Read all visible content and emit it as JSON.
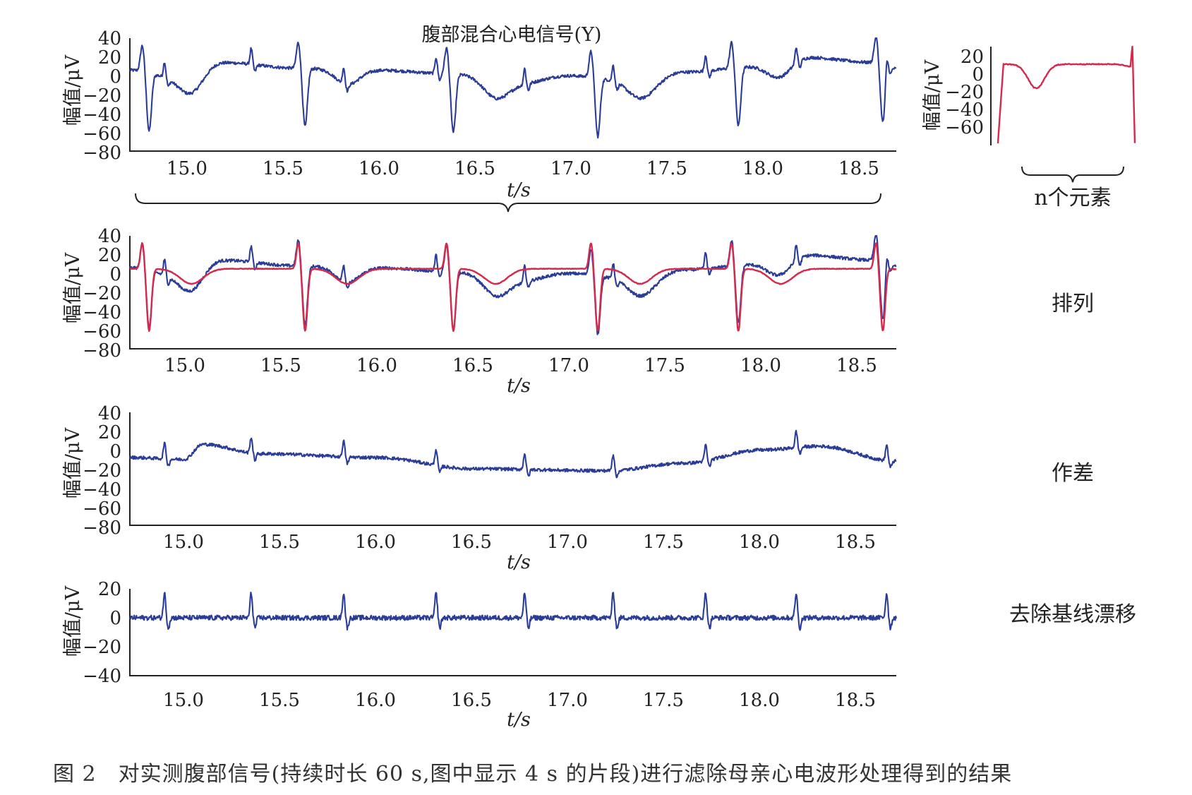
{
  "caption": "图 2　对实测腹部信号(持续时长 60 s,图中显示 4 s 的片段)进行滤除母亲心电波形处理得到的结果",
  "colors": {
    "blue": "#2b3c96",
    "red": "#d42a4e",
    "axis": "#222222"
  },
  "chart_data": [
    {
      "id": "p1",
      "type": "line",
      "title": "腹部混合心电信号(Y)",
      "xlabel": "t/s",
      "ylabel": "幅值/μV",
      "xlim": [
        14.72,
        18.7
      ],
      "ylim": [
        -80,
        40
      ],
      "xticks": [
        "15.0",
        "15.5",
        "16.0",
        "16.5",
        "17.0",
        "17.5",
        "18.0",
        "18.5"
      ],
      "yticks": [
        "40",
        "20",
        "0",
        "−20",
        "−40",
        "−60",
        "−80"
      ],
      "series": [
        {
          "color": "#2b3c96",
          "kind": "mixed",
          "maternal_peaks": [
            14.82,
            15.63,
            16.4,
            17.15,
            17.88,
            18.63
          ],
          "fetal_peaks": [
            14.9,
            15.35,
            15.83,
            16.31,
            16.77,
            17.23,
            17.71,
            18.18,
            18.65
          ],
          "maternal_depth": -62,
          "baseline": [
            [
              14.72,
              6
            ],
            [
              15.0,
              -4
            ],
            [
              15.2,
              14
            ],
            [
              15.6,
              8
            ],
            [
              16.0,
              6
            ],
            [
              16.4,
              2
            ],
            [
              16.7,
              -10
            ],
            [
              17.0,
              0
            ],
            [
              17.4,
              -8
            ],
            [
              17.6,
              4
            ],
            [
              18.0,
              10
            ],
            [
              18.2,
              20
            ],
            [
              18.6,
              14
            ],
            [
              18.7,
              8
            ]
          ]
        }
      ]
    },
    {
      "id": "p2",
      "type": "line",
      "title": "",
      "xlabel": "t/s",
      "ylabel": "幅值/μV",
      "xlim": [
        14.72,
        18.7
      ],
      "ylim": [
        -80,
        40
      ],
      "xticks": [
        "15.0",
        "15.5",
        "16.0",
        "16.5",
        "17.0",
        "17.5",
        "18.0",
        "18.5"
      ],
      "yticks": [
        "40",
        "20",
        "0",
        "−20",
        "−40",
        "−60",
        "−80"
      ],
      "side_label": "排列",
      "series": [
        {
          "color": "#2b3c96",
          "kind": "mixed",
          "maternal_peaks": [
            14.82,
            15.63,
            16.4,
            17.15,
            17.88,
            18.63
          ],
          "fetal_peaks": [
            14.9,
            15.35,
            15.83,
            16.31,
            16.77,
            17.23,
            17.71,
            18.18,
            18.65
          ],
          "maternal_depth": -62,
          "baseline": [
            [
              14.72,
              6
            ],
            [
              15.0,
              -4
            ],
            [
              15.2,
              14
            ],
            [
              15.6,
              8
            ],
            [
              16.0,
              6
            ],
            [
              16.4,
              2
            ],
            [
              16.7,
              -10
            ],
            [
              17.0,
              0
            ],
            [
              17.4,
              -8
            ],
            [
              17.6,
              4
            ],
            [
              18.0,
              10
            ],
            [
              18.2,
              20
            ],
            [
              18.6,
              14
            ],
            [
              18.7,
              8
            ]
          ]
        },
        {
          "color": "#d42a4e",
          "kind": "template",
          "maternal_peaks": [
            14.82,
            15.63,
            16.4,
            17.15,
            17.88,
            18.63
          ],
          "maternal_depth": -66,
          "level": 5,
          "dip": -22
        }
      ]
    },
    {
      "id": "p3",
      "type": "line",
      "title": "",
      "xlabel": "t/s",
      "ylabel": "幅值/μV",
      "xlim": [
        14.72,
        18.7
      ],
      "ylim": [
        -80,
        40
      ],
      "xticks": [
        "15.0",
        "15.5",
        "16.0",
        "16.5",
        "17.0",
        "17.5",
        "18.0",
        "18.5"
      ],
      "yticks": [
        "40",
        "20",
        "0",
        "−20",
        "−40",
        "−60",
        "−80"
      ],
      "side_label": "作差",
      "series": [
        {
          "color": "#2b3c96",
          "kind": "fetal",
          "fetal_peaks": [
            14.9,
            15.35,
            15.83,
            16.31,
            16.77,
            17.23,
            17.71,
            18.18,
            18.65
          ],
          "baseline": [
            [
              14.72,
              -8
            ],
            [
              15.0,
              -10
            ],
            [
              15.1,
              6
            ],
            [
              15.4,
              -4
            ],
            [
              16.0,
              -8
            ],
            [
              16.5,
              -20
            ],
            [
              17.2,
              -22
            ],
            [
              17.6,
              -14
            ],
            [
              18.0,
              0
            ],
            [
              18.3,
              4
            ],
            [
              18.7,
              -12
            ]
          ]
        }
      ]
    },
    {
      "id": "p4",
      "type": "line",
      "title": "",
      "xlabel": "t/s",
      "ylabel": "幅值/μV",
      "xlim": [
        14.72,
        18.7
      ],
      "ylim": [
        -40,
        20
      ],
      "xticks": [
        "15.0",
        "15.5",
        "16.0",
        "16.5",
        "17.0",
        "17.5",
        "18.0",
        "18.5"
      ],
      "yticks": [
        "20",
        "0",
        "−20",
        "−40"
      ],
      "side_label": "去除基线漂移",
      "series": [
        {
          "color": "#2b3c96",
          "kind": "fetal",
          "fetal_peaks": [
            14.9,
            15.35,
            15.83,
            16.31,
            16.77,
            17.23,
            17.71,
            18.18,
            18.65
          ],
          "baseline": [
            [
              14.72,
              0
            ],
            [
              18.7,
              0
            ]
          ]
        }
      ]
    },
    {
      "id": "p5",
      "type": "line",
      "title": "",
      "xlabel": "",
      "ylabel": "幅值/μV",
      "ylim": [
        -70,
        20
      ],
      "yticks": [
        "20",
        "0",
        "−20",
        "−40",
        "−60"
      ],
      "brace_label": "n个元素",
      "series": [
        {
          "color": "#d42a4e",
          "kind": "template_single",
          "level": 4,
          "dip": -22,
          "depth": -68
        }
      ]
    }
  ]
}
